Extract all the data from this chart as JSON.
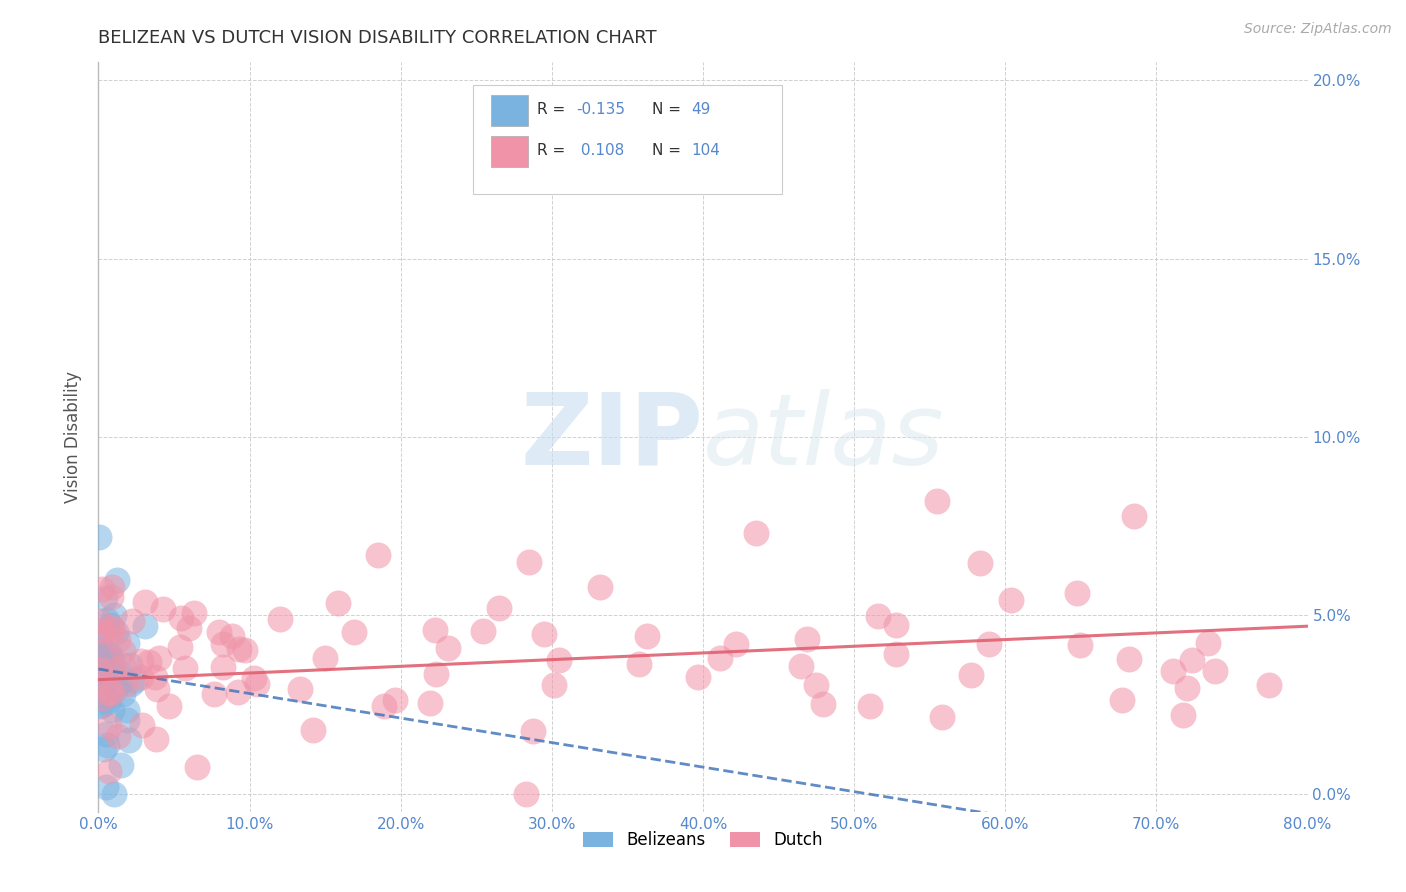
{
  "title": "BELIZEAN VS DUTCH VISION DISABILITY CORRELATION CHART",
  "source_text": "Source: ZipAtlas.com",
  "ylabel": "Vision Disability",
  "xlim": [
    0.0,
    0.8
  ],
  "ylim": [
    -0.005,
    0.205
  ],
  "yticks": [
    0.0,
    0.05,
    0.1,
    0.15,
    0.2
  ],
  "ytick_labels": [
    "0.0%",
    "5.0%",
    "10.0%",
    "15.0%",
    "20.0%"
  ],
  "xticks": [
    0.0,
    0.1,
    0.2,
    0.3,
    0.4,
    0.5,
    0.6,
    0.7,
    0.8
  ],
  "xtick_labels": [
    "0.0%",
    "10.0%",
    "20.0%",
    "30.0%",
    "40.0%",
    "50.0%",
    "60.0%",
    "70.0%",
    "80.0%"
  ],
  "belizean_color": "#7ab3e0",
  "dutch_color": "#f093a8",
  "trend_belizean_color": "#4477bb",
  "trend_dutch_color": "#e06070",
  "axis_color": "#5588cc",
  "grid_color": "#cccccc",
  "R_belizean": -0.135,
  "N_belizean": 49,
  "R_dutch": 0.108,
  "N_dutch": 104,
  "watermark_zip": "ZIP",
  "watermark_atlas": "atlas",
  "legend_label_belizean": "Belizeans",
  "legend_label_dutch": "Dutch",
  "legend_box_color": "#ffffff",
  "legend_box_edge": "#cccccc"
}
